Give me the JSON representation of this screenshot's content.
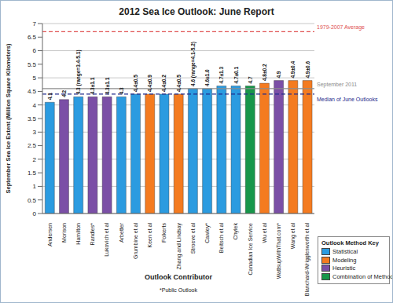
{
  "chart_data": {
    "type": "bar",
    "title": "2012 Sea Ice Outlook: June Report",
    "x_label": "Outlook Contributor",
    "y_label": "September Sea Ice Extent (Million Square Kilometers)",
    "footnote": "*Public Outlook",
    "categories": [
      "Andersen",
      "Morison",
      "Hamilton",
      "Randles*",
      "Lukovich et al",
      "Arbetter",
      "Grumbine et al",
      "Keen et al",
      "Folkerts",
      "Zhang and Lindsay",
      "Stroeve et al",
      "Cawley*",
      "Beitsch et al",
      "Chylek",
      "Canadian Ice Service",
      "Wu et al",
      "WattsupWithThat.com*",
      "Wang et al",
      "Blanchard-Wrigglesworth et al"
    ],
    "values": [
      4.1,
      4.2,
      4.3,
      4.3,
      4.3,
      4.3,
      4.4,
      4.4,
      4.4,
      4.4,
      4.6,
      4.6,
      4.7,
      4.7,
      4.7,
      4.8,
      4.9,
      4.9,
      4.9
    ],
    "value_labels": [
      "4.1",
      "4.2",
      "4.3 (range=3.4-5.1)",
      "4.3±1.1",
      "4.3±1.1",
      "4.3",
      "4.4±0.5",
      "4.4±0.9",
      "4.4±0.2",
      "4.4±0.5",
      "4.6 (range=4.1-5.2)",
      "4.6±1.0",
      "4.7±1.3",
      "4.7±0.1",
      "4.7",
      "4.8±0.2",
      "4.9",
      "4.9±0.4",
      "4.9±0.6"
    ],
    "data_labels": true,
    "colors": [
      "#2b9be0",
      "#7b4fa6",
      "#2b9be0",
      "#7b4fa6",
      "#7b4fa6",
      "#2b9be0",
      "#2b9be0",
      "#f47b20",
      "#2b9be0",
      "#f47b20",
      "#2b9be0",
      "#2b9be0",
      "#2b9be0",
      "#2b9be0",
      "#17964a",
      "#f47b20",
      "#7b4fa6",
      "#f47b20",
      "#f47b20"
    ],
    "ylim": [
      0,
      7
    ],
    "yticks": [
      0,
      0.5,
      1,
      1.5,
      2,
      2.5,
      3,
      3.5,
      4,
      4.5,
      5,
      5.5,
      6,
      6.5,
      7
    ],
    "grid": true,
    "legend": "lower right",
    "legend_title": "Outlook Method Key",
    "legend_items": [
      {
        "name": "Statistical",
        "color": "#2b9be0"
      },
      {
        "name": "Modeling",
        "color": "#f47b20"
      },
      {
        "name": "Heuristic",
        "color": "#7b4fa6"
      },
      {
        "name": "Combination of Methods",
        "color": "#17964a"
      }
    ],
    "reference_lines": [
      {
        "value": 6.7,
        "label": "1979-2007 Average",
        "color": "#e05050",
        "line_style": "dashed"
      },
      {
        "value": 4.6,
        "label": "September 2011",
        "color": "#8c8c8c",
        "line_style": "solid"
      },
      {
        "value": 4.4,
        "label": "Median of June Outlooks",
        "color": "#1f2a8c",
        "line_style": "dashed"
      }
    ]
  }
}
